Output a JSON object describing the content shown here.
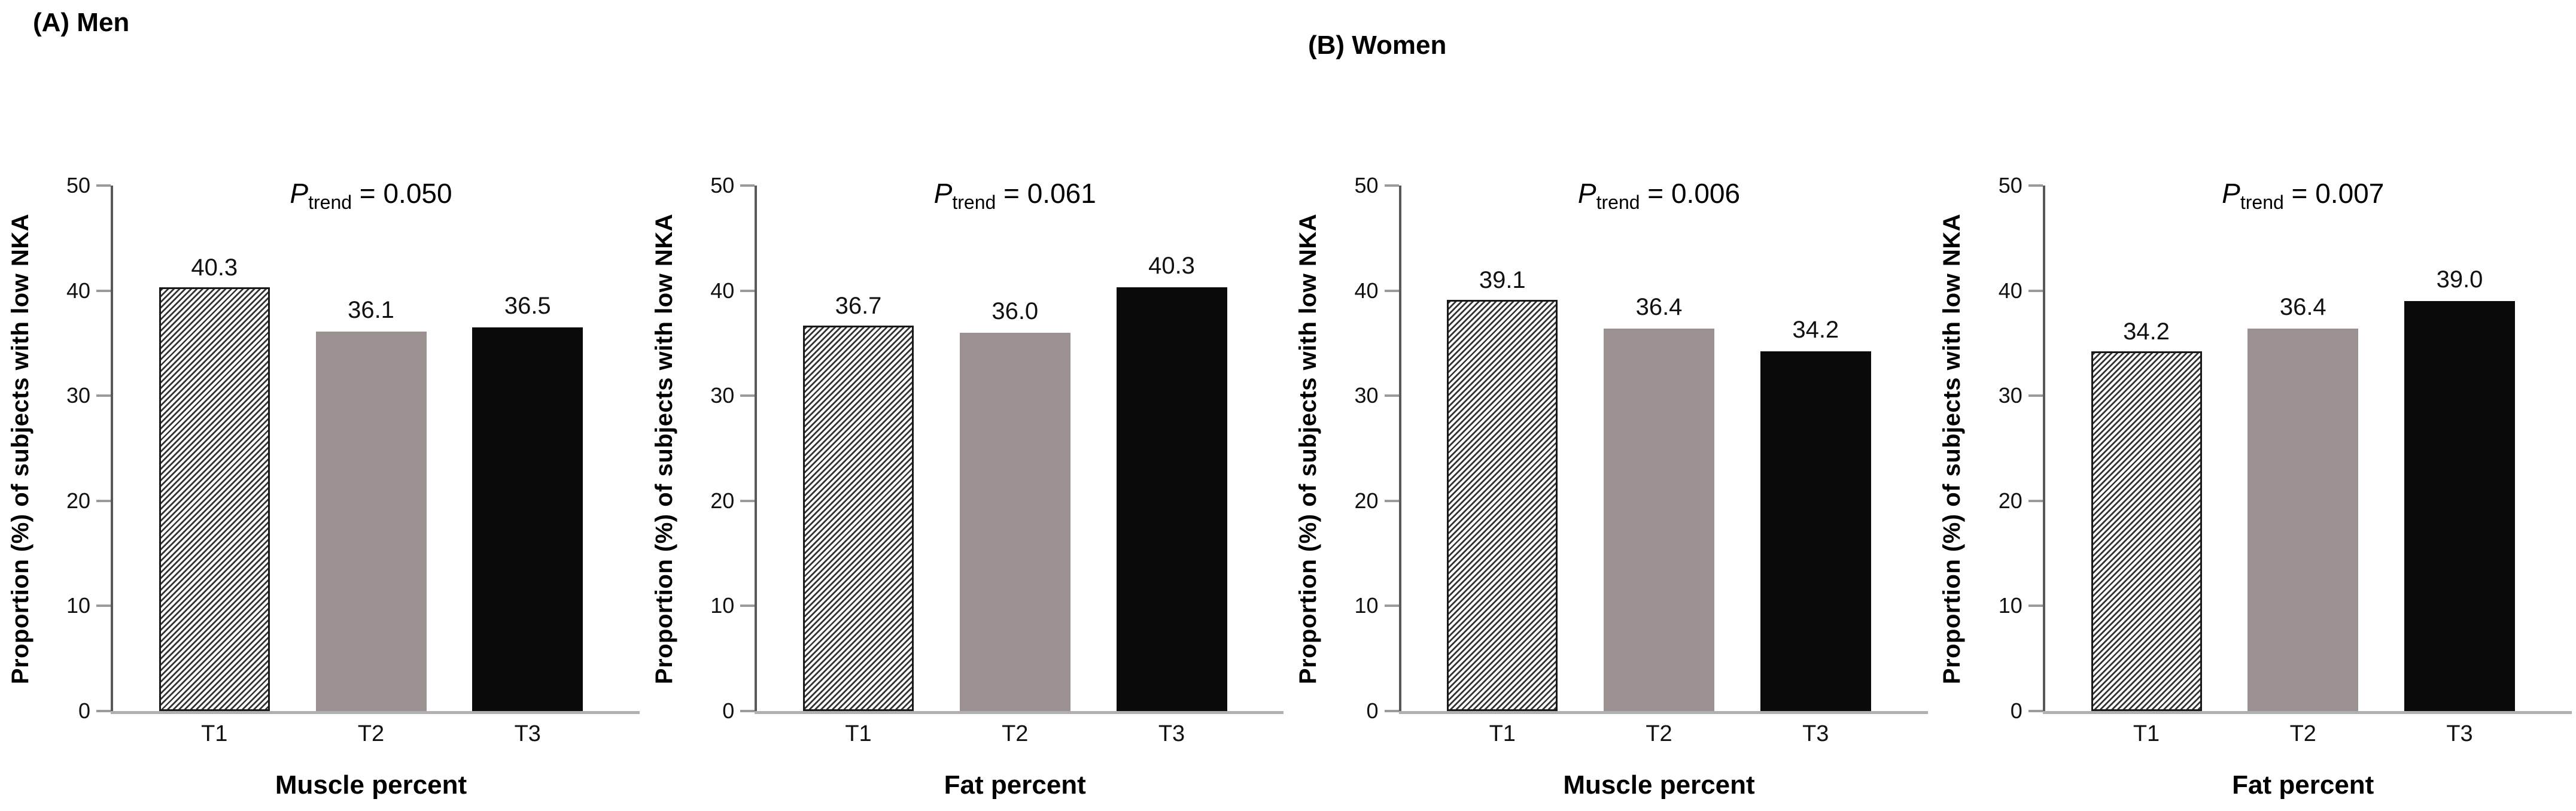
{
  "figure": {
    "group_titles": [
      "(A) Men",
      "(B) Women"
    ],
    "p_label": {
      "symbol": "P",
      "subscript": "trend",
      "equals": "="
    }
  },
  "chart_data": [
    {
      "type": "bar",
      "group": "(A) Men",
      "annotation": "P trend = 0.050",
      "p_trend": "0.050",
      "categories": [
        "T1",
        "T2",
        "T3"
      ],
      "values": [
        40.3,
        36.1,
        36.5
      ],
      "value_labels": [
        "40.3",
        "36.1",
        "36.5"
      ],
      "bar_styles": [
        "hatch",
        "gray",
        "black"
      ],
      "xlabel": "Muscle percent",
      "ylabel": "Proportion (%) of subjects with low NKA",
      "ylim": [
        0,
        50
      ],
      "y_ticks": [
        0,
        10,
        20,
        30,
        40,
        50
      ],
      "grid": false,
      "legend": "none"
    },
    {
      "type": "bar",
      "group": "(A) Men",
      "annotation": "P trend = 0.061",
      "p_trend": "0.061",
      "categories": [
        "T1",
        "T2",
        "T3"
      ],
      "values": [
        36.7,
        36.0,
        40.3
      ],
      "value_labels": [
        "36.7",
        "36.0",
        "40.3"
      ],
      "bar_styles": [
        "hatch",
        "gray",
        "black"
      ],
      "xlabel": "Fat percent",
      "ylabel": "Proportion (%) of subjects with low NKA",
      "ylim": [
        0,
        50
      ],
      "y_ticks": [
        0,
        10,
        20,
        30,
        40,
        50
      ],
      "grid": false,
      "legend": "none"
    },
    {
      "type": "bar",
      "group": "(B) Women",
      "annotation": "P trend = 0.006",
      "p_trend": "0.006",
      "categories": [
        "T1",
        "T2",
        "T3"
      ],
      "values": [
        39.1,
        36.4,
        34.2
      ],
      "value_labels": [
        "39.1",
        "36.4",
        "34.2"
      ],
      "bar_styles": [
        "hatch",
        "gray",
        "black"
      ],
      "xlabel": "Muscle percent",
      "ylabel": "Proportion (%) of subjects with low NKA",
      "ylim": [
        0,
        50
      ],
      "y_ticks": [
        0,
        10,
        20,
        30,
        40,
        50
      ],
      "grid": false,
      "legend": "none"
    },
    {
      "type": "bar",
      "group": "(B) Women",
      "annotation": "P trend = 0.007",
      "p_trend": "0.007",
      "categories": [
        "T1",
        "T2",
        "T3"
      ],
      "values": [
        34.2,
        36.4,
        39.0
      ],
      "value_labels": [
        "34.2",
        "36.4",
        "39.0"
      ],
      "bar_styles": [
        "hatch",
        "gray",
        "black"
      ],
      "xlabel": "Fat percent",
      "ylabel": "Proportion (%) of subjects with low NKA",
      "ylim": [
        0,
        50
      ],
      "y_ticks": [
        0,
        10,
        20,
        30,
        40,
        50
      ],
      "grid": false,
      "legend": "none"
    }
  ],
  "colors": {
    "bar_gray": "#9a9190",
    "bar_black": "#0a0a0a",
    "hatch_line_color": "#333333",
    "hatch_border_color": "#191919",
    "axis_y_color": "#595959",
    "axis_x_color": "#b0b0b0",
    "tick_color": "#9a9a9a"
  }
}
